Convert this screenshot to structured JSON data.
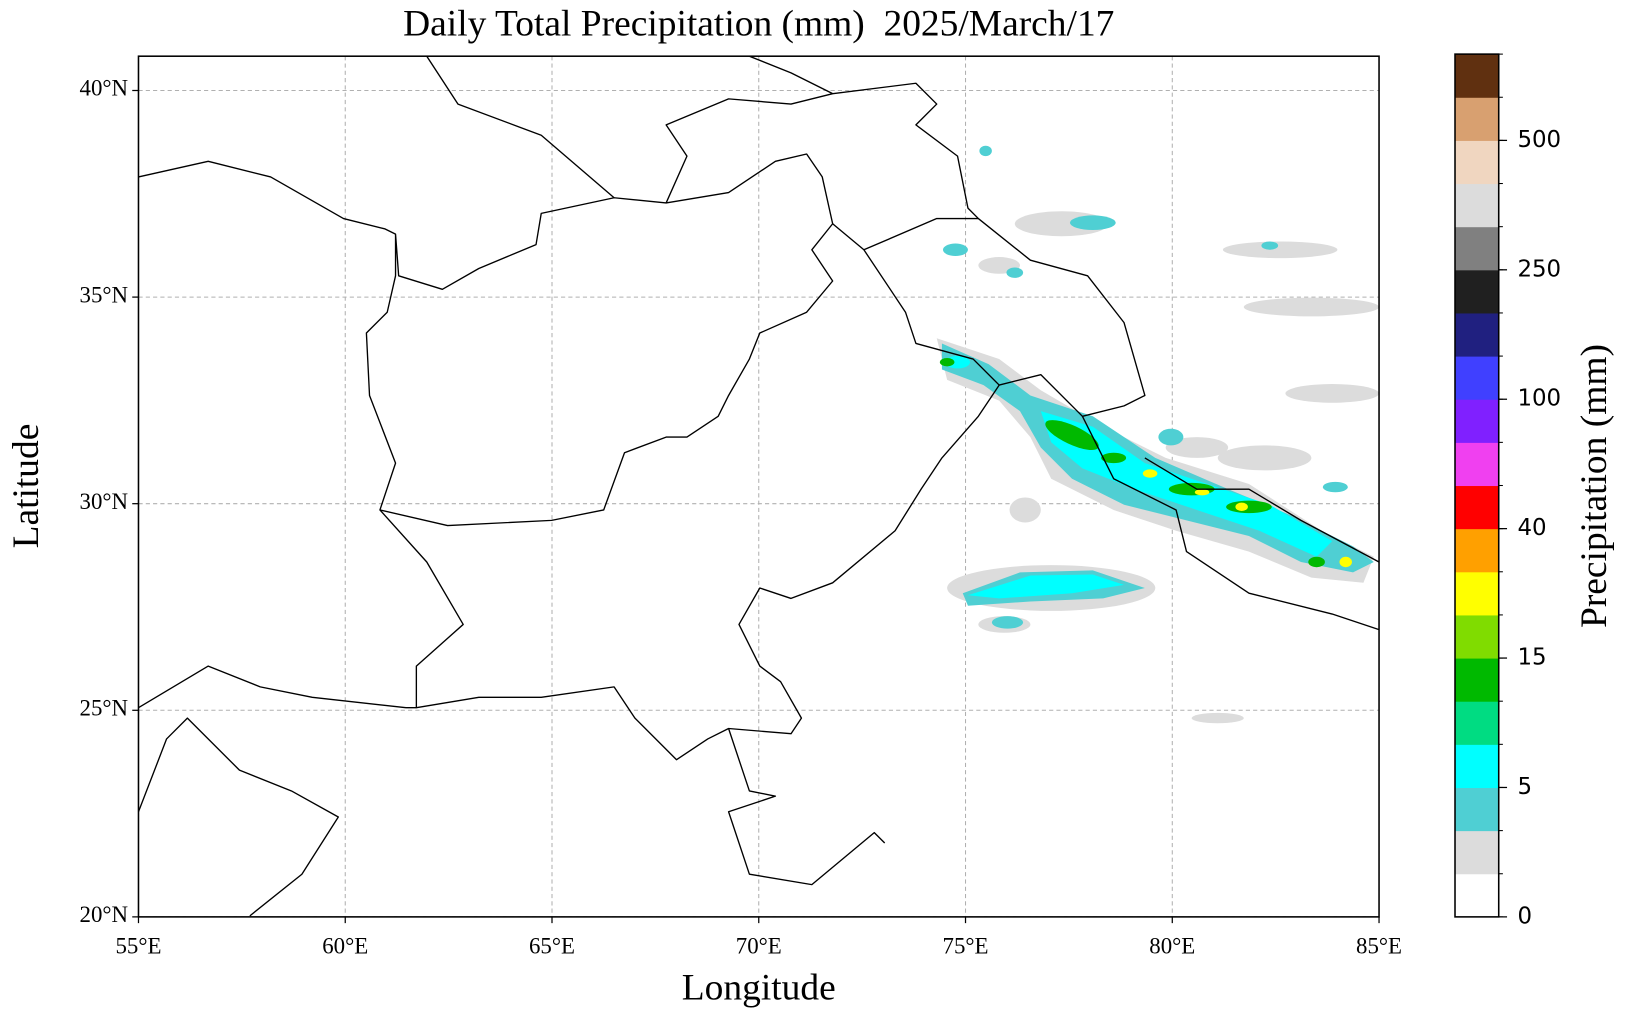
{
  "map": {
    "title": "Daily Total Precipitation (mm)  2025/March/17",
    "xlabel": "Longitude",
    "ylabel": "Latitude",
    "xlim": [
      55,
      85
    ],
    "ylim": [
      20,
      40.83
    ],
    "xticks": [
      {
        "value": 55,
        "label": "55°E"
      },
      {
        "value": 60,
        "label": "60°E"
      },
      {
        "value": 65,
        "label": "65°E"
      },
      {
        "value": 70,
        "label": "70°E"
      },
      {
        "value": 75,
        "label": "75°E"
      },
      {
        "value": 80,
        "label": "80°E"
      },
      {
        "value": 85,
        "label": "85°E"
      }
    ],
    "yticks": [
      {
        "value": 20,
        "label": "20°N"
      },
      {
        "value": 25,
        "label": "25°N"
      },
      {
        "value": 30,
        "label": "30°N"
      },
      {
        "value": 35,
        "label": "35°N"
      },
      {
        "value": 40,
        "label": "40°N"
      }
    ],
    "grid": true,
    "colorbar": {
      "label": "Precipitation (mm)",
      "colors": [
        "#ffffff",
        "#dcdcdc",
        "#4fcfd3",
        "#00ffff",
        "#00dc82",
        "#00b900",
        "#80dc00",
        "#ffff00",
        "#ffa000",
        "#ff0000",
        "#f040f0",
        "#8020ff",
        "#4040ff",
        "#202080",
        "#202020",
        "#808080",
        "#dcdcdc",
        "#f0d6c0",
        "#d8a070",
        "#603010"
      ],
      "ticks": [
        0,
        5,
        15,
        40,
        100,
        250,
        500
      ]
    }
  }
}
